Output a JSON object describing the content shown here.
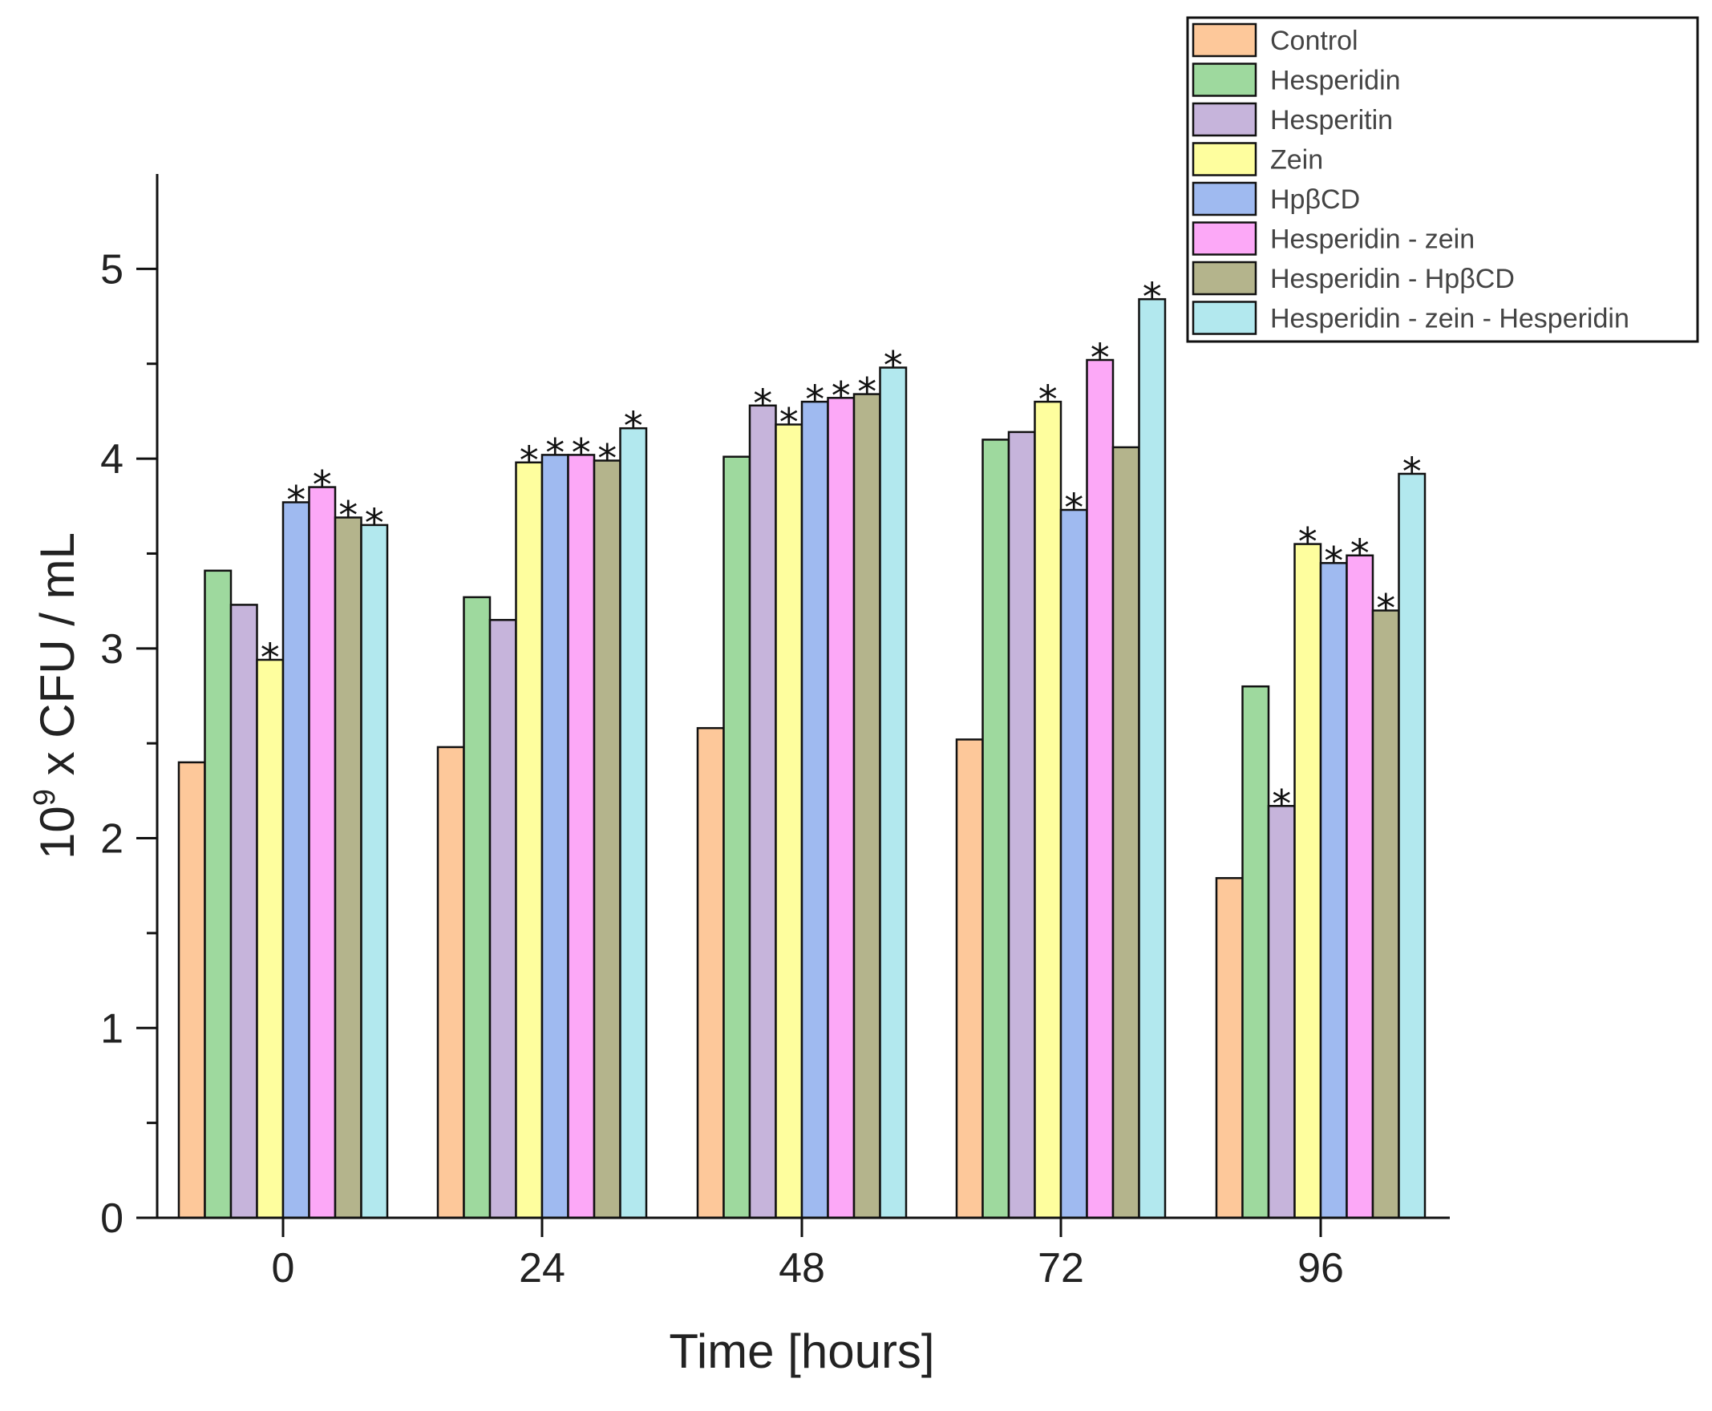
{
  "chart_data": {
    "type": "bar",
    "title": "",
    "xlabel": "Time [hours]",
    "ylabel_base": "10",
    "ylabel_exp": "9",
    "ylabel_rest": " x CFU / mL",
    "categories": [
      "0",
      "24",
      "48",
      "72",
      "96"
    ],
    "ylim": [
      0,
      5.5
    ],
    "yticks": [
      0,
      1,
      2,
      3,
      4,
      5
    ],
    "ytick_labels": [
      "0",
      "1",
      "2",
      "3",
      "4",
      "5"
    ],
    "legend_position": "top-right",
    "star_symbol": "*",
    "series": [
      {
        "name": "Control",
        "color": "#fdc89a",
        "values": [
          2.4,
          2.48,
          2.58,
          2.52,
          1.79
        ],
        "stars": [
          false,
          false,
          false,
          false,
          false
        ]
      },
      {
        "name": "Hesperidin",
        "color": "#9ed99e",
        "values": [
          3.41,
          3.27,
          4.01,
          4.1,
          2.8
        ],
        "stars": [
          false,
          false,
          false,
          false,
          false
        ]
      },
      {
        "name": "Hesperitin",
        "color": "#c6b4db",
        "values": [
          3.23,
          3.15,
          4.28,
          4.14,
          2.17
        ],
        "stars": [
          false,
          false,
          true,
          false,
          true
        ]
      },
      {
        "name": "Zein",
        "color": "#fefe9e",
        "values": [
          2.94,
          3.98,
          4.18,
          4.3,
          3.55
        ],
        "stars": [
          true,
          true,
          true,
          true,
          true
        ]
      },
      {
        "name": "HpβCD",
        "color": "#9fbaf0",
        "values": [
          3.77,
          4.02,
          4.3,
          3.73,
          3.45
        ],
        "stars": [
          true,
          true,
          true,
          true,
          true
        ]
      },
      {
        "name": "Hesperidin - zein",
        "color": "#fca8f7",
        "values": [
          3.85,
          4.02,
          4.32,
          4.52,
          3.49
        ],
        "stars": [
          true,
          true,
          true,
          true,
          true
        ]
      },
      {
        "name": "Hesperidin - HpβCD",
        "color": "#b4b48c",
        "values": [
          3.69,
          3.99,
          4.34,
          4.06,
          3.2
        ],
        "stars": [
          true,
          true,
          true,
          false,
          true
        ]
      },
      {
        "name": "Hesperidin - zein - Hesperidin",
        "color": "#b2e8ee",
        "values": [
          3.65,
          4.16,
          4.48,
          4.84,
          3.92
        ],
        "stars": [
          true,
          true,
          true,
          true,
          true
        ]
      }
    ]
  }
}
